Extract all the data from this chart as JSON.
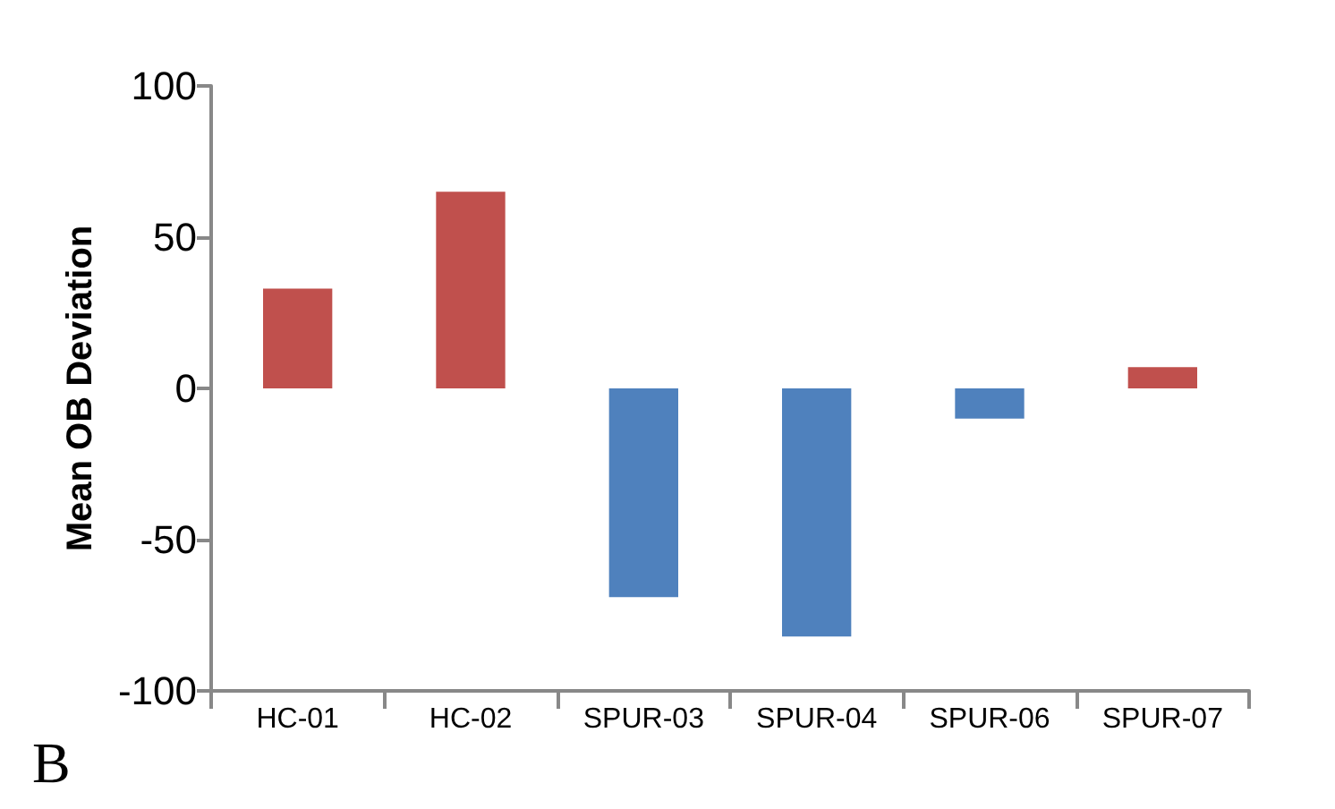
{
  "chart_data": {
    "type": "bar",
    "ylabel": "Mean OB Deviation",
    "categories": [
      "HC-01",
      "HC-02",
      "SPUR-03",
      "SPUR-04",
      "SPUR-06",
      "SPUR-07"
    ],
    "values": [
      33,
      65,
      -69,
      -82,
      -10,
      7
    ],
    "colors": [
      "#c0504d",
      "#c0504d",
      "#4f81bd",
      "#4f81bd",
      "#4f81bd",
      "#c0504d"
    ],
    "ylim": [
      -100,
      100
    ],
    "yticks": [
      -100,
      -50,
      0,
      50,
      100
    ],
    "grid": false,
    "annotations": [
      "B"
    ]
  }
}
